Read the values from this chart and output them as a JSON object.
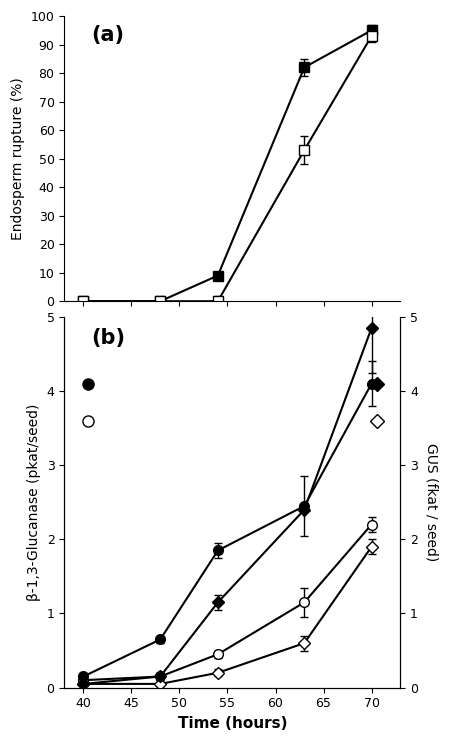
{
  "panel_a": {
    "x": [
      40,
      48,
      54,
      63,
      70
    ],
    "filled_square": [
      0,
      0,
      9,
      82,
      95
    ],
    "filled_square_err": [
      0,
      0,
      0,
      3,
      2
    ],
    "open_square": [
      0,
      0,
      0,
      53,
      93
    ],
    "open_square_err": [
      0,
      0,
      2,
      5,
      2
    ],
    "ylabel": "Endosperm rupture (%)",
    "ylim": [
      0,
      100
    ],
    "yticks": [
      0,
      10,
      20,
      30,
      40,
      50,
      60,
      70,
      80,
      90,
      100
    ],
    "label": "(a)"
  },
  "panel_b": {
    "x": [
      40,
      48,
      54,
      63,
      70
    ],
    "filled_circle": [
      0.15,
      0.65,
      1.85,
      2.45,
      4.1
    ],
    "filled_circle_err": [
      0.05,
      0.05,
      0.1,
      0.4,
      0.3
    ],
    "open_circle": [
      0.1,
      0.15,
      0.45,
      1.15,
      2.2
    ],
    "open_circle_err": [
      0.05,
      0.05,
      0.05,
      0.2,
      0.1
    ],
    "filled_diamond": [
      0.05,
      0.15,
      1.15,
      2.4,
      4.85
    ],
    "filled_diamond_err": [
      0.02,
      0.05,
      0.1,
      0.0,
      0.6
    ],
    "open_diamond": [
      0.05,
      0.05,
      0.2,
      0.6,
      1.9
    ],
    "open_diamond_err": [
      0.02,
      0.02,
      0.05,
      0.1,
      0.1
    ],
    "ylabel_left": "β-1,3-Glucanase (pkat/seed)",
    "ylabel_right": "GUS (fkat / seed)",
    "ylim_left": [
      0,
      5
    ],
    "ylim_right": [
      0,
      5
    ],
    "yticks_left": [
      0,
      1,
      2,
      3,
      4,
      5
    ],
    "yticks_right": [
      0,
      1,
      2,
      3,
      4,
      5
    ],
    "label": "(b)"
  },
  "xlabel": "Time (hours)",
  "xlim": [
    38,
    73
  ],
  "xticks": [
    40,
    45,
    50,
    55,
    60,
    65,
    70
  ],
  "bg_color": "#ffffff",
  "line_color": "black",
  "marker_size": 7,
  "linewidth": 1.5
}
